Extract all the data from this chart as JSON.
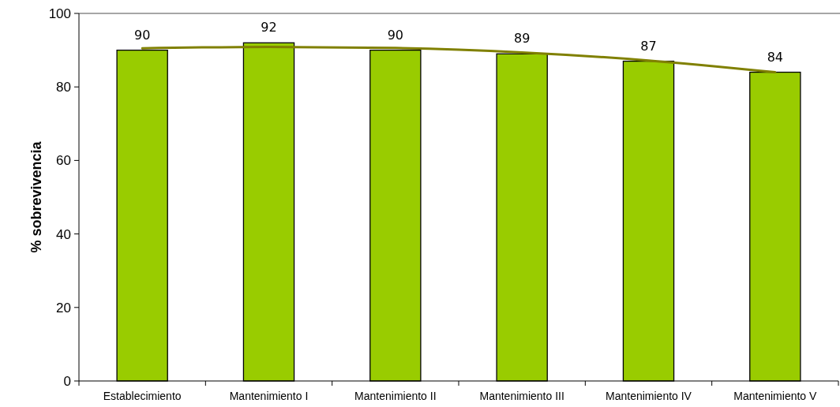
{
  "chart_data": {
    "type": "bar",
    "ylabel": "% sobrevivencia",
    "categories": [
      "Establecimiento",
      "Mantenimiento I",
      "Mantenimiento II",
      "Mantenimiento III",
      "Mantenimiento IV",
      "Mantenimiento V"
    ],
    "series": [
      {
        "color": "#99cc00",
        "values": [
          90,
          92,
          90,
          89,
          87,
          84
        ],
        "value_labels": [
          "90",
          "92",
          "90",
          "89",
          "87",
          "84"
        ]
      },
      {
        "type": "line",
        "color": "#808000",
        "x": [
          "Establecimiento",
          "Mantenimiento I",
          "Mantenimiento II",
          "Mantenimiento III",
          "Mantenimiento IV",
          "Mantenimiento V"
        ],
        "values": [
          90.5,
          90.9,
          90.6,
          89.4,
          87.2,
          84.0
        ]
      }
    ],
    "ylim": [
      0,
      100
    ],
    "yticks": [
      0,
      20,
      40,
      60,
      80,
      100
    ]
  }
}
